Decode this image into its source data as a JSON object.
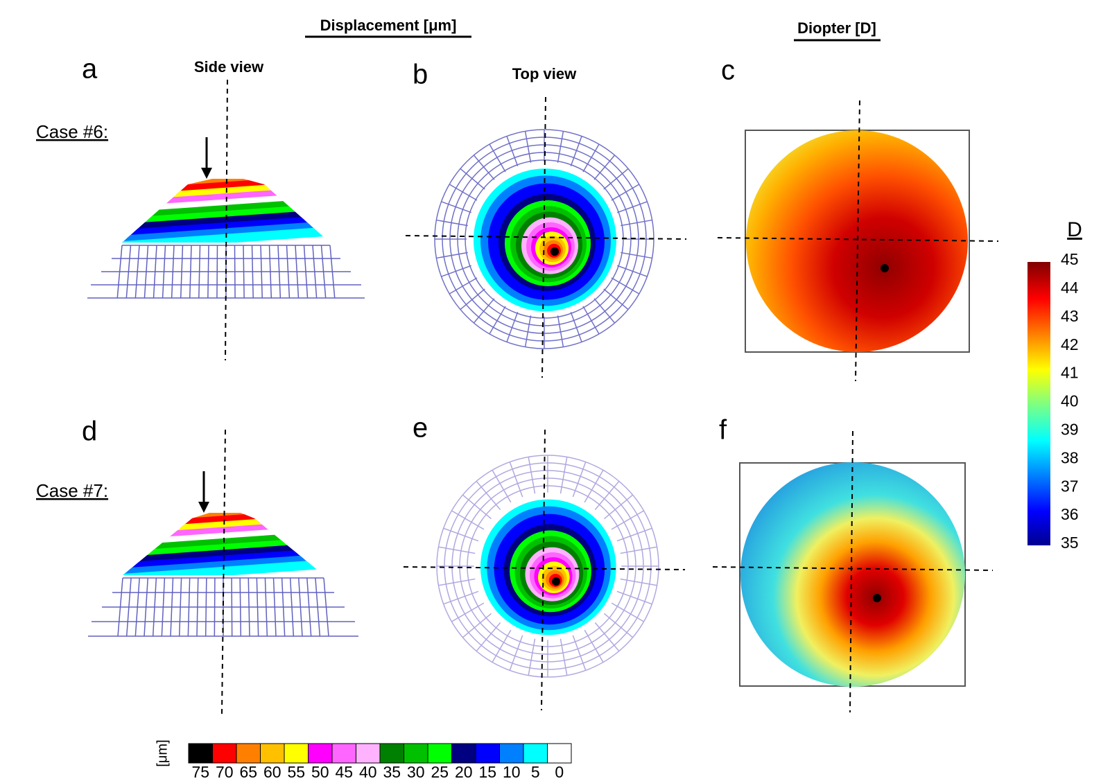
{
  "header": {
    "displacement_title": "Displacement [μm]",
    "diopter_title": "Diopter [D]"
  },
  "panels": [
    {
      "letter": "a",
      "label": "Side view",
      "case": "Case #6:"
    },
    {
      "letter": "b",
      "label": "Top view"
    },
    {
      "letter": "c"
    },
    {
      "letter": "d",
      "case": "Case #7:"
    },
    {
      "letter": "e"
    },
    {
      "letter": "f"
    }
  ],
  "diopter_scale": {
    "title": "D",
    "ticks": [
      45,
      44,
      43,
      42,
      41,
      40,
      39,
      38,
      37,
      36,
      35
    ]
  },
  "displacement_scale": {
    "unit": "[μm]",
    "ticks": [
      75,
      70,
      65,
      60,
      55,
      50,
      45,
      40,
      35,
      30,
      25,
      20,
      15,
      10,
      5,
      0
    ],
    "colors": [
      "#000000",
      "#ff0000",
      "#ff8000",
      "#ffc000",
      "#ffff00",
      "#ff00ff",
      "#ff66ff",
      "#ffb3ff",
      "#008000",
      "#00c000",
      "#00ff00",
      "#000080",
      "#0000ff",
      "#0080ff",
      "#00ffff",
      "#ffffff"
    ]
  }
}
